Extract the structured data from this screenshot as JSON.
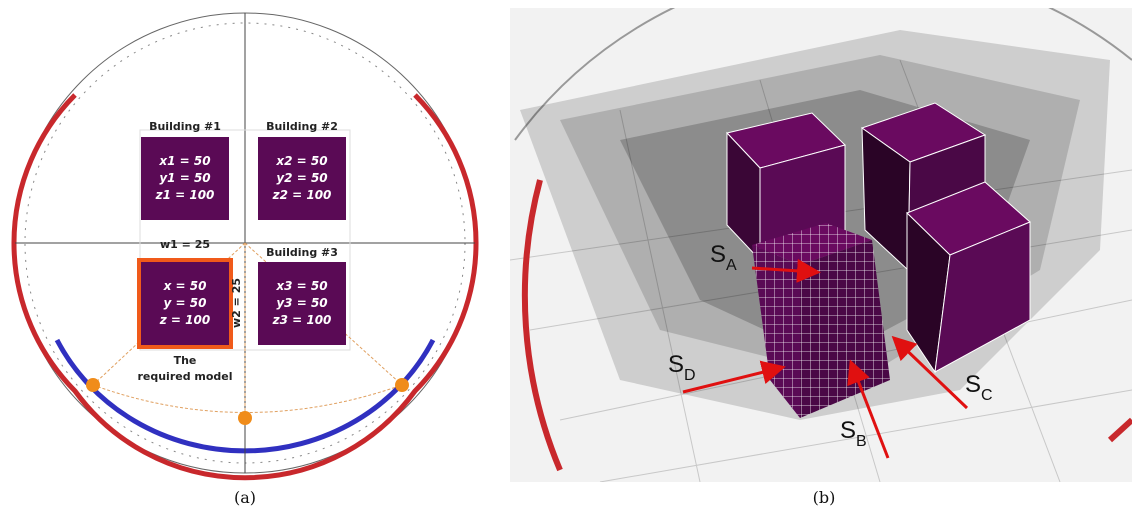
{
  "panel_a": {
    "caption": "(a)",
    "buildings": [
      {
        "label": "Building #1",
        "lines": [
          "x1 = 50",
          "y1 = 50",
          "z1 = 100"
        ]
      },
      {
        "label": "Building #2",
        "lines": [
          "x2 = 50",
          "y2 = 50",
          "z2 = 100"
        ]
      },
      {
        "label": "Building #3",
        "lines": [
          "x3 = 50",
          "y3 = 50",
          "z3 = 100"
        ]
      }
    ],
    "required_model": {
      "lines": [
        "x = 50",
        "y = 50",
        "z = 100"
      ],
      "label": [
        "The",
        "required model"
      ]
    },
    "w1": "w1 = 25",
    "w2": "w2 = 25"
  },
  "panel_b": {
    "caption": "(b)",
    "surfaces": [
      {
        "letter": "S",
        "subscript": "A"
      },
      {
        "letter": "S",
        "subscript": "B"
      },
      {
        "letter": "S",
        "subscript": "C"
      },
      {
        "letter": "S",
        "subscript": "D"
      }
    ]
  }
}
